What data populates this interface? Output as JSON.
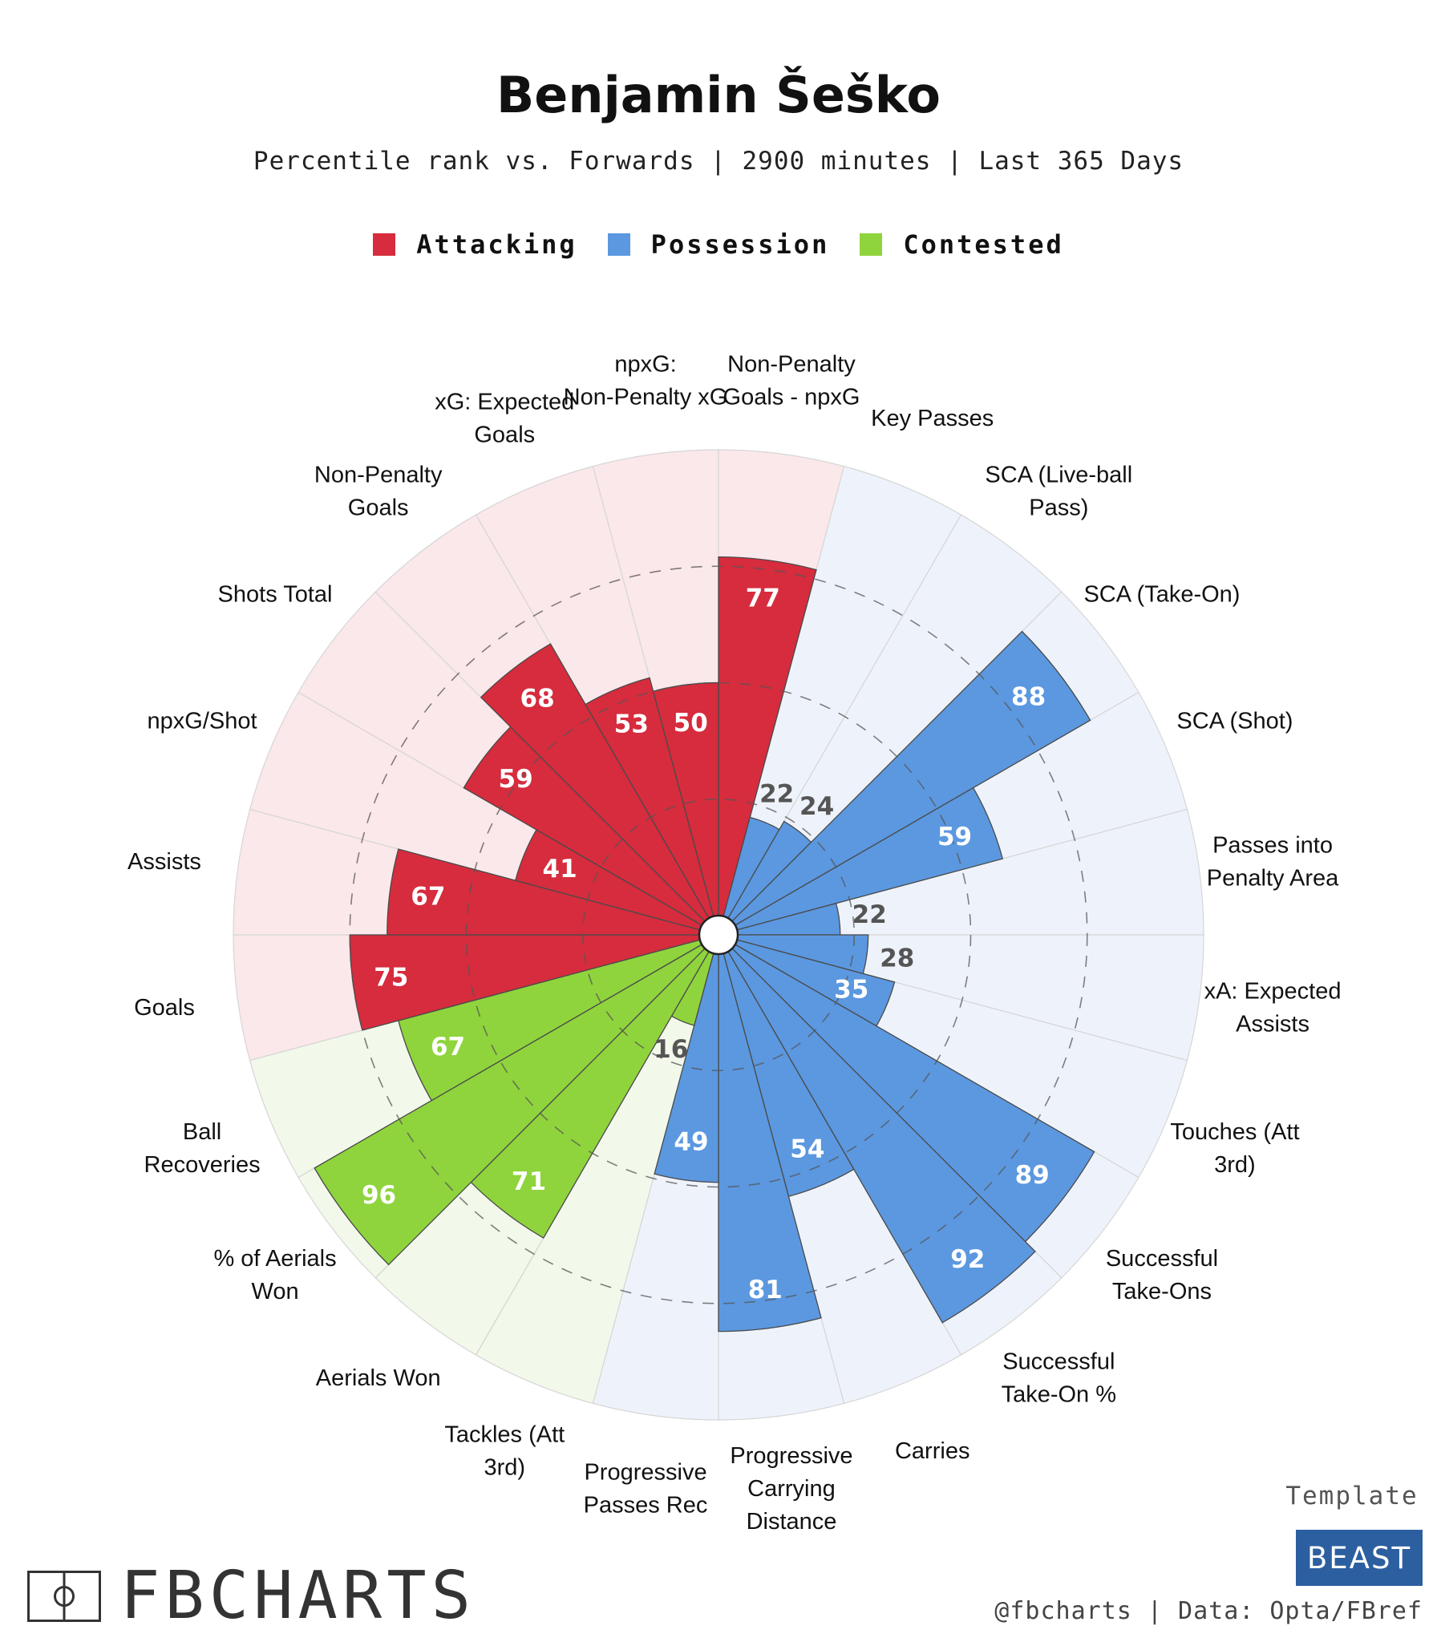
{
  "header": {
    "title": "Benjamin Šeško",
    "subtitle": "Percentile rank vs. Forwards | 2900 minutes | Last 365 Days"
  },
  "legend": [
    {
      "label": "Attacking",
      "color": "#d62c3d"
    },
    {
      "label": "Possession",
      "color": "#5b98e0"
    },
    {
      "label": "Contested",
      "color": "#8fd43c"
    }
  ],
  "chart_data": {
    "type": "polar-bar",
    "range": [
      0,
      100
    ],
    "grid": true,
    "categories": [
      {
        "label": "Non-Penalty Goals - npxG",
        "value": 77,
        "group": "Attacking"
      },
      {
        "label": "Key Passes",
        "value": 22,
        "group": "Possession"
      },
      {
        "label": "SCA (Live-ball Pass)",
        "value": 24,
        "group": "Possession"
      },
      {
        "label": "SCA (Take-On)",
        "value": 88,
        "group": "Possession"
      },
      {
        "label": "SCA (Shot)",
        "value": 59,
        "group": "Possession"
      },
      {
        "label": "Passes into Penalty Area",
        "value": 22,
        "group": "Possession"
      },
      {
        "label": "xA: Expected Assists",
        "value": 28,
        "group": "Possession"
      },
      {
        "label": "Touches (Att 3rd)",
        "value": 35,
        "group": "Possession"
      },
      {
        "label": "Successful Take-Ons",
        "value": 89,
        "group": "Possession"
      },
      {
        "label": "Successful Take-On %",
        "value": 92,
        "group": "Possession"
      },
      {
        "label": "Carries",
        "value": 54,
        "group": "Possession"
      },
      {
        "label": "Progressive Carrying Distance",
        "value": 81,
        "group": "Possession"
      },
      {
        "label": "Progressive Passes Rec",
        "value": 49,
        "group": "Possession"
      },
      {
        "label": "Tackles (Att 3rd)",
        "value": 16,
        "group": "Contested"
      },
      {
        "label": "Aerials Won",
        "value": 71,
        "group": "Contested"
      },
      {
        "label": "% of Aerials Won",
        "value": 96,
        "group": "Contested"
      },
      {
        "label": "Ball Recoveries",
        "value": 67,
        "group": "Contested"
      },
      {
        "label": "Goals",
        "value": 75,
        "group": "Attacking"
      },
      {
        "label": "Assists",
        "value": 67,
        "group": "Attacking"
      },
      {
        "label": "npxG/Shot",
        "value": 41,
        "group": "Attacking"
      },
      {
        "label": "Shots Total",
        "value": 59,
        "group": "Attacking"
      },
      {
        "label": "Non-Penalty Goals",
        "value": 68,
        "group": "Attacking"
      },
      {
        "label": "xG: Expected Goals",
        "value": 53,
        "group": "Attacking"
      },
      {
        "label": "npxG: Non-Penalty xG",
        "value": 50,
        "group": "Attacking"
      }
    ]
  },
  "branding": {
    "template_word": "Template",
    "template_box": "BEAST",
    "credit": "@fbcharts | Data: Opta/FBref",
    "logo_text": "FBCHARTS"
  }
}
